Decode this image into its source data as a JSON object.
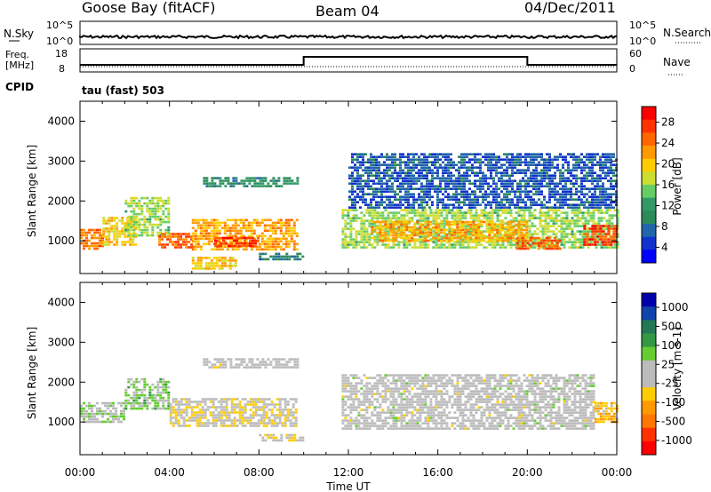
{
  "header": {
    "station": "Goose Bay (fitACF)",
    "beam": "Beam 04",
    "date": "04/Dec/2011"
  },
  "top_panels": {
    "nsky_label": "N.Sky",
    "nsearch_label": "N.Search",
    "freq_label_line1": "Freq.",
    "freq_label_line2": "[MHz]",
    "nave_label": "Nave",
    "cpid_label": "CPID",
    "noise_ticks_left": [
      "10^5",
      "10^0"
    ],
    "noise_ticks_right": [
      "10^5",
      "10^0"
    ],
    "freq_ticks": [
      "18",
      "8"
    ],
    "nave_ticks": [
      "60",
      "0"
    ],
    "mode_text": "tau (fast) 503"
  },
  "axes": {
    "ylabel": "Slant Range [km]",
    "xlabel": "Time UT",
    "yticks": [
      "4000",
      "3000",
      "2000",
      "1000"
    ],
    "xticks": [
      "00:00",
      "04:00",
      "08:00",
      "12:00",
      "16:00",
      "20:00",
      "00:00"
    ]
  },
  "power_colorbar": {
    "label": "Power [dB]",
    "ticks": [
      "28",
      "24",
      "20",
      "16",
      "12",
      "8",
      "4"
    ],
    "colors": [
      "#ff0000",
      "#ff3300",
      "#ff6600",
      "#ff9900",
      "#ffcc00",
      "#ccdd33",
      "#66cc66",
      "#339966",
      "#2a8a5a",
      "#2266aa",
      "#1133cc",
      "#0000ff"
    ]
  },
  "velocity_colorbar": {
    "label": "Velocity [m s-1]",
    "ticks": [
      "1000",
      "500",
      "100",
      "25",
      "-25",
      "-100",
      "-500",
      "-1000"
    ],
    "colors": [
      "#0000aa",
      "#1144aa",
      "#227755",
      "#339944",
      "#66cc33",
      "#bbbbbb",
      "#bbbbbb",
      "#ffcc00",
      "#ff9900",
      "#ff7700",
      "#ff3300",
      "#ff0000"
    ]
  },
  "chart_data": [
    {
      "type": "heatmap",
      "title": "Power",
      "xlabel": "Time UT",
      "ylabel": "Slant Range [km]",
      "xlim": [
        0,
        24
      ],
      "ylim": [
        180,
        4500
      ],
      "colorbar_label": "Power [dB]",
      "colorbar_range": [
        0,
        32
      ],
      "regions": [
        {
          "t": [
            0.0,
            1.0
          ],
          "range": [
            800,
            1300
          ],
          "value": 24
        },
        {
          "t": [
            1.0,
            2.5
          ],
          "range": [
            900,
            1600
          ],
          "value": 20
        },
        {
          "t": [
            2.0,
            4.0
          ],
          "range": [
            1100,
            2100
          ],
          "value": 16
        },
        {
          "t": [
            3.5,
            5.0
          ],
          "range": [
            850,
            1200
          ],
          "value": 26
        },
        {
          "t": [
            5.0,
            9.7
          ],
          "range": [
            800,
            1550
          ],
          "value": 22
        },
        {
          "t": [
            6.0,
            8.0
          ],
          "range": [
            850,
            1100
          ],
          "value": 28
        },
        {
          "t": [
            5.5,
            9.7
          ],
          "range": [
            2350,
            2600
          ],
          "value": 10
        },
        {
          "t": [
            8.0,
            10.0
          ],
          "range": [
            500,
            700
          ],
          "value": 8
        },
        {
          "t": [
            5.0,
            7.0
          ],
          "range": [
            300,
            600
          ],
          "value": 20
        },
        {
          "t": [
            11.7,
            24.0
          ],
          "range": [
            800,
            1800
          ],
          "value": 16
        },
        {
          "t": [
            13.0,
            20.0
          ],
          "range": [
            1000,
            1500
          ],
          "value": 22
        },
        {
          "t": [
            19.5,
            21.5
          ],
          "range": [
            800,
            1100
          ],
          "value": 26
        },
        {
          "t": [
            22.5,
            24.0
          ],
          "range": [
            900,
            1400
          ],
          "value": 28
        },
        {
          "t": [
            12.0,
            24.0
          ],
          "range": [
            1800,
            3200
          ],
          "value": 6
        }
      ]
    },
    {
      "type": "heatmap",
      "title": "Velocity",
      "xlabel": "Time UT",
      "ylabel": "Slant Range [km]",
      "xlim": [
        0,
        24
      ],
      "ylim": [
        180,
        4500
      ],
      "colorbar_label": "Velocity [m s-1]",
      "colorbar_range": [
        -1000,
        1000
      ],
      "regions": [
        {
          "t": [
            0.0,
            2.0
          ],
          "range": [
            1000,
            1500
          ],
          "value": 80
        },
        {
          "t": [
            2.0,
            4.0
          ],
          "range": [
            1300,
            2100
          ],
          "value": 200
        },
        {
          "t": [
            4.0,
            9.7
          ],
          "range": [
            900,
            1600
          ],
          "value": -100
        },
        {
          "t": [
            5.5,
            9.7
          ],
          "range": [
            2350,
            2600
          ],
          "value": 0
        },
        {
          "t": [
            8.0,
            10.0
          ],
          "range": [
            500,
            700
          ],
          "value": -100
        },
        {
          "t": [
            11.7,
            23.0
          ],
          "range": [
            800,
            2200
          ],
          "value": 0
        },
        {
          "t": [
            23.0,
            24.0
          ],
          "range": [
            1000,
            1500
          ],
          "value": -300
        }
      ]
    }
  ]
}
